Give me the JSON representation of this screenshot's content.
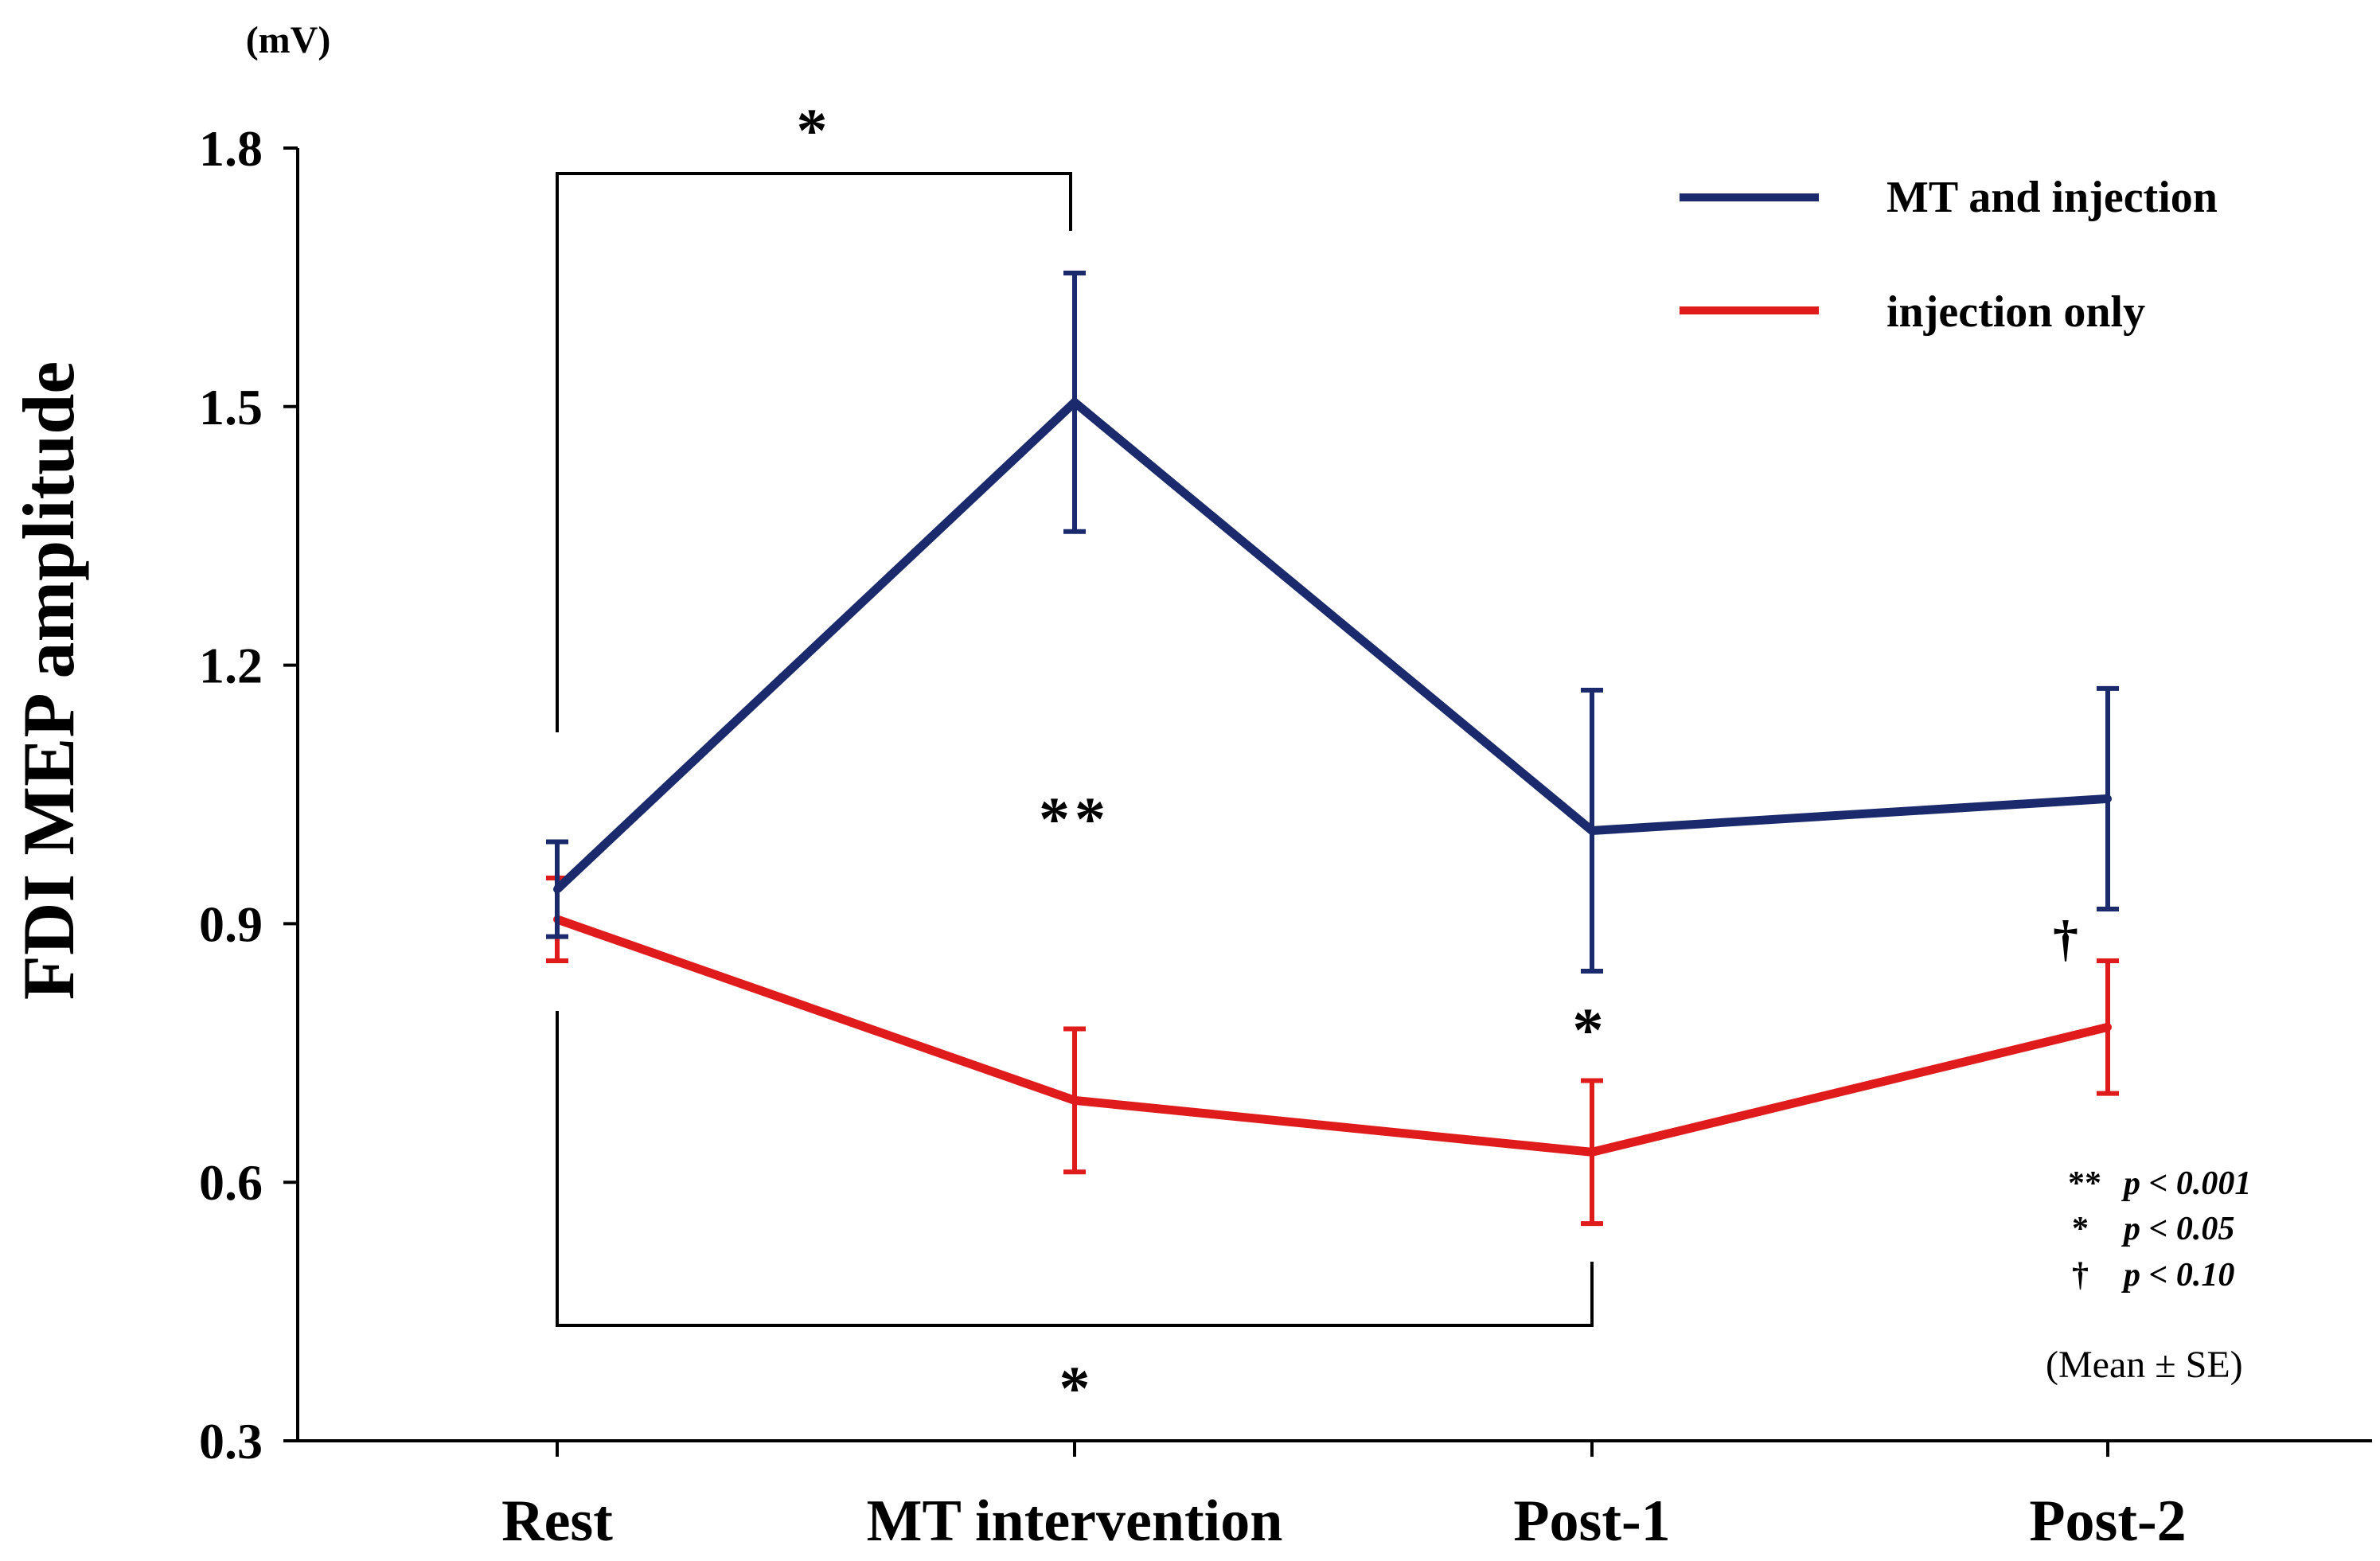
{
  "chart_data": {
    "type": "line",
    "ylabel": "FDI MEP amplitude",
    "y_unit": "(mV)",
    "ylim": [
      0.3,
      1.8
    ],
    "yticks": [
      "0.3",
      "0.6",
      "0.9",
      "1.2",
      "1.5",
      "1.8"
    ],
    "categories": [
      "Rest",
      "MT intervention",
      "Post-1",
      "Post-2"
    ],
    "series": [
      {
        "name": "MT and injection",
        "color": "#1a2a6c",
        "values": [
          0.94,
          1.505,
          1.008,
          1.045
        ],
        "se": [
          0.055,
          0.15,
          0.163,
          0.128
        ]
      },
      {
        "name": "injection only",
        "color": "#e01b1b",
        "values": [
          0.905,
          0.695,
          0.635,
          0.78
        ],
        "se": [
          0.048,
          0.083,
          0.083,
          0.077
        ]
      }
    ],
    "annotations": {
      "bracket_top_star": "*",
      "bracket_bottom_star": "*",
      "mt_intervention_star": "**",
      "post1_star": "*",
      "post2_dagger": "†"
    },
    "significance_legend": [
      {
        "symbol": "**",
        "text": "p < 0.001"
      },
      {
        "symbol": "*",
        "text": "p < 0.05"
      },
      {
        "symbol": "†",
        "text": "p < 0.10"
      }
    ],
    "note": "(Mean ± SE)",
    "legend_position": "top-right"
  }
}
